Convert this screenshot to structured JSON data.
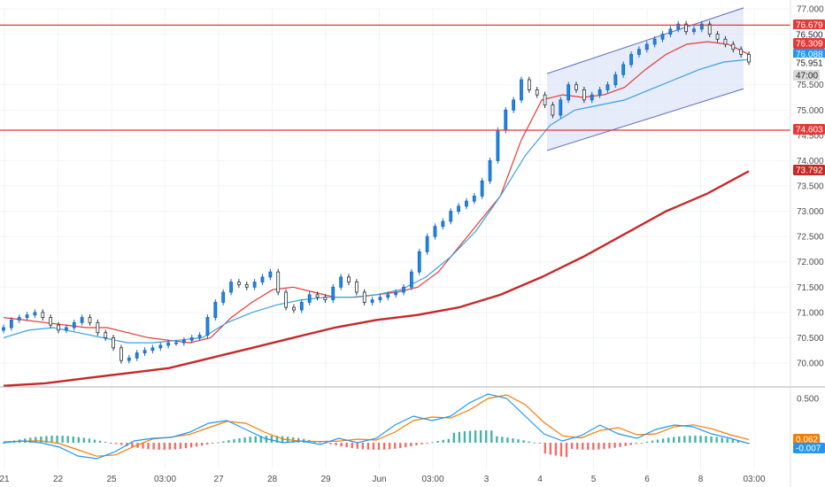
{
  "chart_data": {
    "type": "candlestick",
    "symbol_axis": "price",
    "price_axis": {
      "ticks": [
        "77.000",
        "76.500",
        "75.500",
        "75.000",
        "74.500",
        "74.000",
        "73.500",
        "73.000",
        "72.500",
        "72.000",
        "71.500",
        "71.000",
        "70.500",
        "70.000"
      ],
      "range": [
        69.55,
        77.12
      ]
    },
    "time_axis": {
      "labels": [
        "21",
        "22",
        "25",
        "03:00",
        "27",
        "28",
        "29",
        "Jun",
        "03:00",
        "3",
        "4",
        "5",
        "6",
        "8",
        "03:00"
      ]
    },
    "candles_close": [
      70.7,
      70.85,
      70.9,
      70.95,
      71.0,
      70.9,
      70.75,
      70.65,
      70.7,
      70.8,
      70.9,
      70.8,
      70.6,
      70.5,
      70.3,
      70.05,
      70.1,
      70.2,
      70.25,
      70.3,
      70.35,
      70.4,
      70.4,
      70.45,
      70.5,
      70.55,
      70.9,
      71.2,
      71.4,
      71.6,
      71.55,
      71.5,
      71.6,
      71.7,
      71.8,
      71.4,
      71.1,
      71.05,
      71.2,
      71.35,
      71.3,
      71.25,
      71.5,
      71.7,
      71.6,
      71.4,
      71.2,
      71.25,
      71.3,
      71.35,
      71.4,
      71.5,
      71.8,
      72.2,
      72.5,
      72.7,
      72.8,
      73.0,
      73.1,
      73.2,
      73.3,
      73.6,
      74.0,
      74.6,
      75.0,
      75.2,
      75.6,
      75.4,
      75.3,
      75.1,
      74.9,
      75.2,
      75.5,
      75.4,
      75.2,
      75.3,
      75.4,
      75.5,
      75.7,
      75.9,
      76.1,
      76.2,
      76.3,
      76.4,
      76.5,
      76.6,
      76.7,
      76.55,
      76.6,
      76.7,
      76.5,
      76.4,
      76.3,
      76.2,
      76.1,
      75.95
    ],
    "series": [
      {
        "name": "",
        "color": "#e53935",
        "values": [
          70.9,
          70.85,
          70.8,
          70.75,
          70.7,
          70.7,
          70.6,
          70.5,
          70.45,
          70.4,
          70.5,
          70.9,
          71.2,
          71.45,
          71.5,
          71.4,
          71.3,
          71.3,
          71.35,
          71.4,
          71.5,
          71.8,
          72.3,
          72.8,
          73.3,
          74.4,
          75.2,
          75.3,
          75.25,
          75.3,
          75.45,
          75.8,
          76.1,
          76.3,
          76.35,
          76.3,
          76.1
        ]
      },
      {
        "name": "",
        "color": "#3aa0e0",
        "values": [
          70.5,
          70.65,
          70.7,
          70.6,
          70.5,
          70.4,
          70.4,
          70.45,
          70.5,
          70.8,
          71.0,
          71.15,
          71.25,
          71.3,
          71.3,
          71.35,
          71.45,
          71.7,
          72.1,
          72.6,
          73.3,
          74.1,
          74.7,
          75.0,
          75.1,
          75.2,
          75.4,
          75.6,
          75.8,
          75.95,
          76.0
        ]
      },
      {
        "name": "",
        "color": "#c62828",
        "values": [
          69.55,
          69.6,
          69.7,
          69.8,
          69.9,
          70.1,
          70.3,
          70.5,
          70.7,
          70.85,
          70.95,
          71.1,
          71.35,
          71.7,
          72.1,
          72.55,
          73.0,
          73.35,
          73.792
        ]
      }
    ],
    "horizontal_levels": [
      {
        "value": 76.679,
        "label": "76.679",
        "color": "#e53935"
      },
      {
        "value": 74.603,
        "label": "74.603",
        "color": "#e53935"
      }
    ],
    "price_badges": [
      {
        "label": "76.679",
        "bg": "#e53935",
        "text_color": "#ffffff"
      },
      {
        "label": "76.500",
        "bg": "#ffffff",
        "text_color": "#1e1e1e"
      },
      {
        "label": "76.309",
        "bg": "#e53935",
        "text_color": "#ffffff"
      },
      {
        "label": "76.088",
        "bg": "#2196f3",
        "text_color": "#ffffff"
      },
      {
        "label": "75.951",
        "bg": "#ffffff",
        "text_color": "#1e1e1e"
      },
      {
        "label": "47:00",
        "bg": "#d9d9d9",
        "text_color": "#1e1e1e"
      },
      {
        "label": "74.603",
        "bg": "#e53935",
        "text_color": "#ffffff"
      },
      {
        "label": "73.792",
        "bg": "#c62828",
        "text_color": "#ffffff"
      }
    ],
    "channel": {
      "color": "#5c6bc0",
      "fill": "#dbe4f7"
    },
    "oscillator": {
      "ticks": [
        "0.500"
      ],
      "badges": [
        {
          "label": "0.062",
          "bg": "#f57c00",
          "text_color": "#ffffff"
        },
        {
          "label": "-0.007",
          "bg": "#2196f3",
          "text_color": "#ffffff"
        }
      ],
      "macd_color": "#2196f3",
      "signal_color": "#f57c00",
      "hist_pos_color": "#26a69a",
      "hist_neg_color": "#ef5350"
    }
  }
}
